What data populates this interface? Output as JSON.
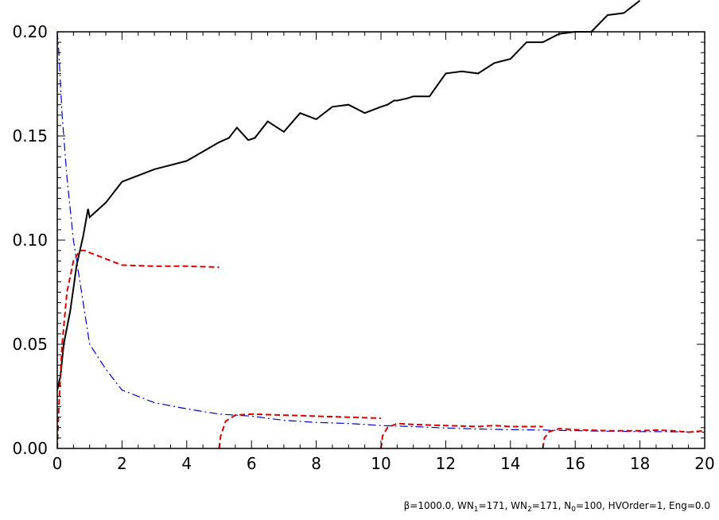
{
  "chart_data": {
    "type": "line",
    "title": "",
    "xlabel": "",
    "ylabel": "",
    "xlim": [
      0,
      20
    ],
    "ylim": [
      0,
      0.2
    ],
    "xticks": [
      0,
      2,
      4,
      6,
      8,
      10,
      12,
      14,
      16,
      18,
      20
    ],
    "xtick_labels": [
      "0",
      "2",
      "4",
      "6",
      "8",
      "10",
      "12",
      "14",
      "16",
      "18",
      "20"
    ],
    "yticks": [
      0,
      0.05,
      0.1,
      0.15,
      0.2
    ],
    "ytick_labels": [
      "0.00",
      "0.05",
      "0.10",
      "0.15",
      "0.20"
    ],
    "grid": false,
    "annotation": {
      "beta": "β=1000.0, ",
      "wn1_prefix": "WN",
      "wn1_sub": "1",
      "wn1_value": "=171, ",
      "wn2_prefix": "WN",
      "wn2_sub": "2",
      "wn2_value": "=171, ",
      "n0_prefix": "N",
      "n0_sub": "0",
      "n0_value": "=100, ",
      "rest": "HVOrder=1, Eng=0.0"
    },
    "series": [
      {
        "color": "#000000",
        "style": "solid",
        "x": [
          0.0,
          0.1,
          0.2,
          0.4,
          0.6,
          0.8,
          0.95,
          1.0,
          1.5,
          2.0,
          3.0,
          4.0,
          5.0,
          5.15,
          5.3,
          5.55,
          5.9,
          6.1,
          6.5,
          7.0,
          7.5,
          8.0,
          8.5,
          9.0,
          9.5,
          10.0,
          10.2,
          10.4,
          10.5,
          10.8,
          11.0,
          11.5,
          12.0,
          12.5,
          13.0,
          13.5,
          14.0,
          14.5,
          15.0,
          15.5,
          16.0,
          16.5,
          17.0,
          17.5,
          18.0
        ],
        "y": [
          0.028,
          0.035,
          0.05,
          0.066,
          0.088,
          0.102,
          0.115,
          0.111,
          0.118,
          0.128,
          0.134,
          0.138,
          0.147,
          0.148,
          0.149,
          0.154,
          0.148,
          0.149,
          0.157,
          0.152,
          0.161,
          0.158,
          0.164,
          0.165,
          0.161,
          0.164,
          0.165,
          0.167,
          0.167,
          0.168,
          0.169,
          0.169,
          0.18,
          0.181,
          0.18,
          0.185,
          0.187,
          0.195,
          0.195,
          0.199,
          0.2,
          0.2,
          0.208,
          0.209,
          0.215
        ]
      },
      {
        "color": "#0000cc",
        "style": "dashdot",
        "x": [
          0.0,
          0.05,
          0.15,
          0.3,
          0.5,
          0.7,
          1.0,
          1.5,
          2.0,
          3.0,
          4.0,
          5.0,
          6.0,
          7.0,
          8.0,
          9.0,
          10.0,
          11.0,
          12.0,
          13.0,
          14.0,
          15.0,
          16.0,
          17.0,
          18.0,
          19.0,
          20.0
        ],
        "y": [
          0.2,
          0.19,
          0.16,
          0.13,
          0.1,
          0.08,
          0.05,
          0.038,
          0.028,
          0.022,
          0.019,
          0.0165,
          0.0155,
          0.0135,
          0.0125,
          0.012,
          0.011,
          0.0105,
          0.0098,
          0.0093,
          0.009,
          0.0088,
          0.0085,
          0.0083,
          0.0081,
          0.008,
          0.0078
        ]
      },
      {
        "color": "#dd0000",
        "style": "dashed",
        "x": [
          0.0,
          0.05,
          0.15,
          0.3,
          0.5,
          0.7,
          0.85,
          1.0,
          1.5,
          2.0,
          3.0,
          4.0,
          5.0
        ],
        "y": [
          0.0,
          0.02,
          0.05,
          0.075,
          0.09,
          0.095,
          0.095,
          0.094,
          0.091,
          0.088,
          0.0875,
          0.0875,
          0.087
        ]
      },
      {
        "color": "#dd0000",
        "style": "dashed",
        "x": [
          5.0,
          5.05,
          5.2,
          5.5,
          6.0,
          7.0,
          8.0,
          9.0,
          10.0
        ],
        "y": [
          0.0,
          0.006,
          0.013,
          0.016,
          0.0165,
          0.016,
          0.0155,
          0.015,
          0.0145
        ]
      },
      {
        "color": "#dd0000",
        "style": "dashed",
        "x": [
          10.0,
          10.05,
          10.2,
          10.5,
          11.0,
          12.0,
          13.0,
          13.5,
          14.0,
          15.0
        ],
        "y": [
          0.0,
          0.006,
          0.01,
          0.012,
          0.0115,
          0.011,
          0.0105,
          0.011,
          0.0105,
          0.0105
        ]
      },
      {
        "color": "#dd0000",
        "style": "dashed",
        "x": [
          15.0,
          15.05,
          15.2,
          15.5,
          16.0,
          17.0,
          18.0,
          18.5,
          19.0,
          19.5,
          20.0
        ],
        "y": [
          0.0,
          0.005,
          0.008,
          0.0095,
          0.009,
          0.0085,
          0.0085,
          0.0088,
          0.0085,
          0.0078,
          0.0085
        ]
      }
    ]
  }
}
